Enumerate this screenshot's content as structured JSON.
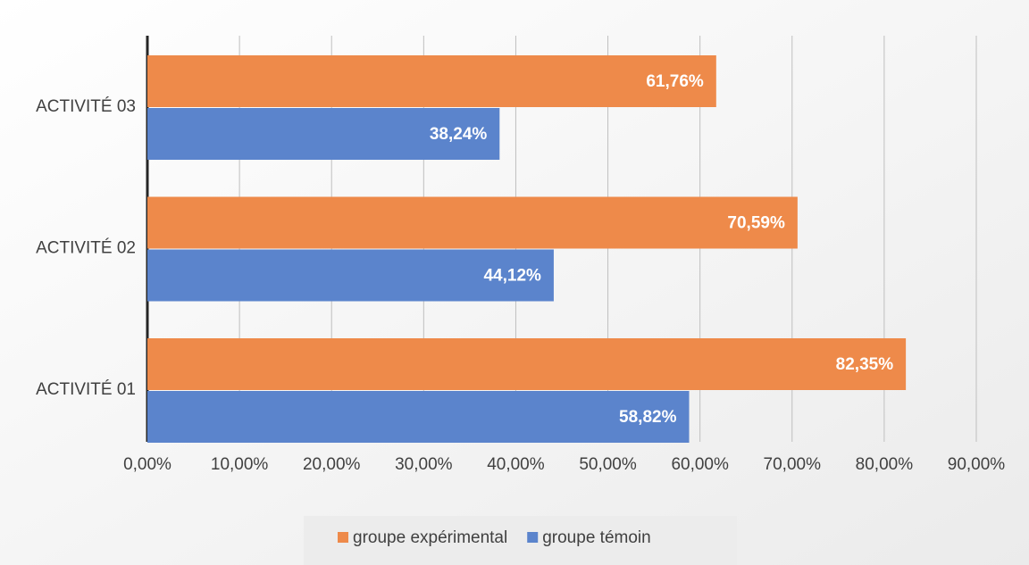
{
  "chart_data": {
    "type": "barh",
    "categories": [
      "ACTIVITÉ 01",
      "ACTIVITÉ 02",
      "ACTIVITÉ 03"
    ],
    "series": [
      {
        "name": "groupe expérimental",
        "color": "#ee8a4a",
        "values": [
          82.35,
          70.59,
          61.76
        ],
        "value_labels": [
          "82,35%",
          "70,59%",
          "61,76%"
        ]
      },
      {
        "name": "groupe témoin",
        "color": "#5b84cc",
        "values": [
          58.82,
          44.12,
          38.24
        ],
        "value_labels": [
          "58,82%",
          "44,12%",
          "38,24%"
        ]
      }
    ],
    "xlim": [
      0,
      90
    ],
    "xticks": [
      {
        "value": 0,
        "label": "0,00%"
      },
      {
        "value": 10,
        "label": "10,00%"
      },
      {
        "value": 20,
        "label": "20,00%"
      },
      {
        "value": 30,
        "label": "30,00%"
      },
      {
        "value": 40,
        "label": "40,00%"
      },
      {
        "value": 50,
        "label": "50,00%"
      },
      {
        "value": 60,
        "label": "60,00%"
      },
      {
        "value": 70,
        "label": "70,00%"
      },
      {
        "value": 80,
        "label": "80,00%"
      },
      {
        "value": 90,
        "label": "90,00%"
      }
    ],
    "grid": true,
    "legend": "bottom"
  }
}
